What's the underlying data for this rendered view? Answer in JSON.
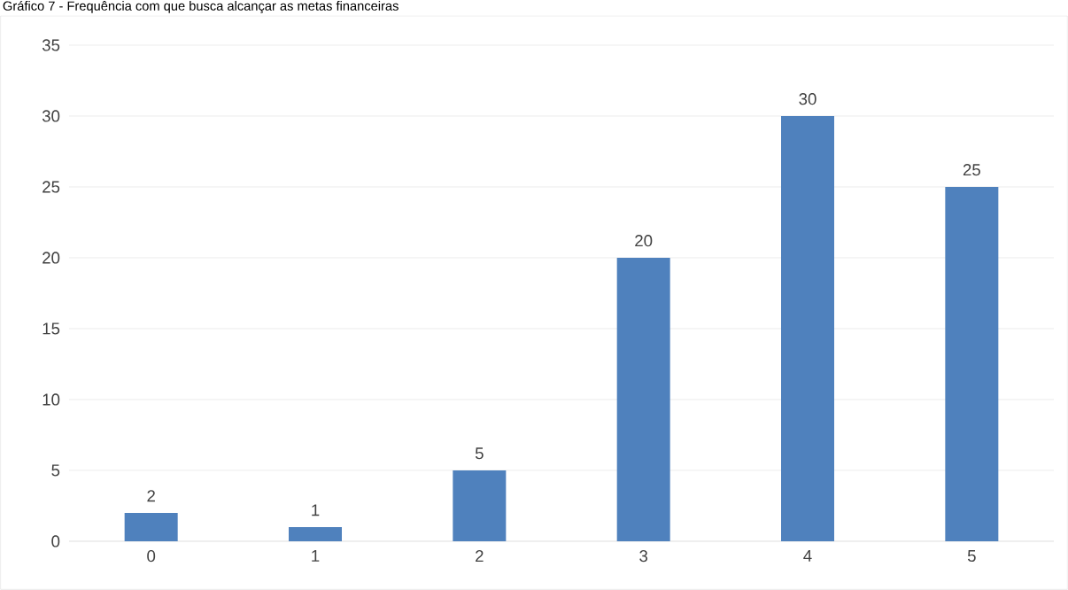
{
  "chart_data": {
    "type": "bar",
    "title": "Gráfico 7 - Frequência com que busca alcançar as metas financeiras",
    "categories": [
      "0",
      "1",
      "2",
      "3",
      "4",
      "5"
    ],
    "values": [
      2,
      1,
      5,
      20,
      30,
      25
    ],
    "color": "#4f81bd",
    "ylim": [
      0,
      35
    ],
    "yticks": [
      0,
      5,
      10,
      15,
      20,
      25,
      30,
      35
    ],
    "grid": "y",
    "data_labels": true
  }
}
